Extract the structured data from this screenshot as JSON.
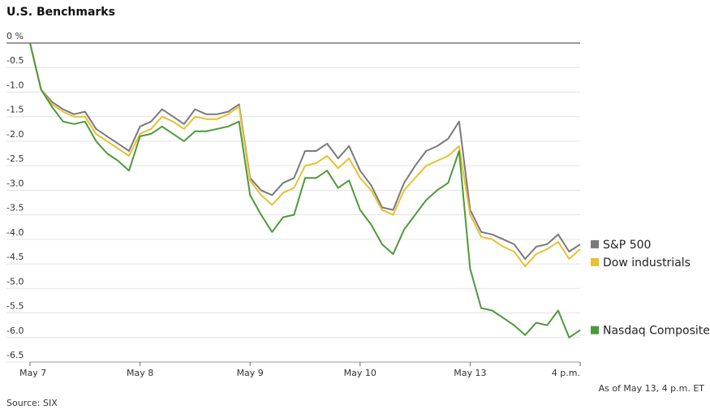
{
  "chart_data": {
    "type": "line",
    "title": "U.S. Benchmarks",
    "x": [
      0,
      0.1,
      0.2,
      0.3,
      0.4,
      0.5,
      0.6,
      0.7,
      0.8,
      0.9,
      1,
      1.1,
      1.2,
      1.3,
      1.4,
      1.5,
      1.6,
      1.7,
      1.8,
      1.9,
      2,
      2.1,
      2.2,
      2.3,
      2.4,
      2.5,
      2.6,
      2.7,
      2.8,
      2.9,
      3,
      3.1,
      3.2,
      3.3,
      3.4,
      3.5,
      3.6,
      3.7,
      3.8,
      3.9,
      4,
      4.1,
      4.2,
      4.3,
      4.4,
      4.5,
      4.6,
      4.7,
      4.8,
      4.9,
      5
    ],
    "series": [
      {
        "name": "S&P 500",
        "color": "#7a7a7a",
        "values": [
          0,
          -0.95,
          -1.2,
          -1.35,
          -1.45,
          -1.4,
          -1.75,
          -1.9,
          -2.05,
          -2.2,
          -1.7,
          -1.6,
          -1.35,
          -1.5,
          -1.65,
          -1.35,
          -1.45,
          -1.45,
          -1.4,
          -1.25,
          -2.75,
          -3.0,
          -3.1,
          -2.85,
          -2.75,
          -2.2,
          -2.2,
          -2.05,
          -2.35,
          -2.1,
          -2.6,
          -2.9,
          -3.35,
          -3.4,
          -2.85,
          -2.5,
          -2.2,
          -2.1,
          -1.95,
          -1.6,
          -3.4,
          -3.85,
          -3.9,
          -4.0,
          -4.1,
          -4.4,
          -4.15,
          -4.1,
          -3.9,
          -4.25,
          -4.1
        ]
      },
      {
        "name": "Dow industrials",
        "color": "#e8c030",
        "values": [
          0,
          -0.95,
          -1.25,
          -1.4,
          -1.5,
          -1.5,
          -1.85,
          -2.0,
          -2.15,
          -2.3,
          -1.85,
          -1.75,
          -1.5,
          -1.6,
          -1.75,
          -1.5,
          -1.55,
          -1.55,
          -1.45,
          -1.3,
          -2.8,
          -3.1,
          -3.3,
          -3.05,
          -2.95,
          -2.5,
          -2.45,
          -2.3,
          -2.55,
          -2.35,
          -2.75,
          -3.0,
          -3.4,
          -3.5,
          -3.0,
          -2.75,
          -2.5,
          -2.4,
          -2.3,
          -2.1,
          -3.5,
          -3.95,
          -4.0,
          -4.15,
          -4.25,
          -4.55,
          -4.3,
          -4.2,
          -4.05,
          -4.4,
          -4.2
        ]
      },
      {
        "name": "Nasdaq Composite",
        "color": "#4c9a3a",
        "values": [
          0,
          -0.95,
          -1.3,
          -1.6,
          -1.65,
          -1.6,
          -2.0,
          -2.25,
          -2.4,
          -2.6,
          -1.9,
          -1.85,
          -1.7,
          -1.85,
          -2.0,
          -1.8,
          -1.8,
          -1.75,
          -1.7,
          -1.6,
          -3.1,
          -3.5,
          -3.85,
          -3.55,
          -3.5,
          -2.75,
          -2.75,
          -2.6,
          -2.95,
          -2.8,
          -3.4,
          -3.7,
          -4.1,
          -4.3,
          -3.8,
          -3.5,
          -3.2,
          -3.0,
          -2.85,
          -2.2,
          -4.6,
          -5.4,
          -5.45,
          -5.6,
          -5.75,
          -5.95,
          -5.7,
          -5.75,
          -5.45,
          -6.0,
          -5.85
        ]
      }
    ],
    "xlim": [
      0,
      5
    ],
    "xticks": [
      {
        "value": 0,
        "label": "May 7"
      },
      {
        "value": 1,
        "label": "May 8"
      },
      {
        "value": 2,
        "label": "May 9"
      },
      {
        "value": 3,
        "label": "May 10"
      },
      {
        "value": 4,
        "label": "May 13"
      },
      {
        "value": 5,
        "label": "4 p.m."
      }
    ],
    "ylim": [
      -6.5,
      0
    ],
    "yticks": [
      {
        "value": 0,
        "label": "0 %"
      },
      -0.5,
      {
        "value": -1,
        "label": "-1.0"
      },
      -1.5,
      {
        "value": -2,
        "label": "-2.0"
      },
      -2.5,
      {
        "value": -3,
        "label": "-3.0"
      },
      -3.5,
      {
        "value": -4,
        "label": "-4.0"
      },
      -4.5,
      {
        "value": -5,
        "label": "-5.0"
      },
      -5.5,
      {
        "value": -6,
        "label": "-6.0"
      },
      -6.5
    ],
    "grid": true,
    "note": "As of May 13, 4 p.m. ET",
    "source": "Source: SIX"
  }
}
